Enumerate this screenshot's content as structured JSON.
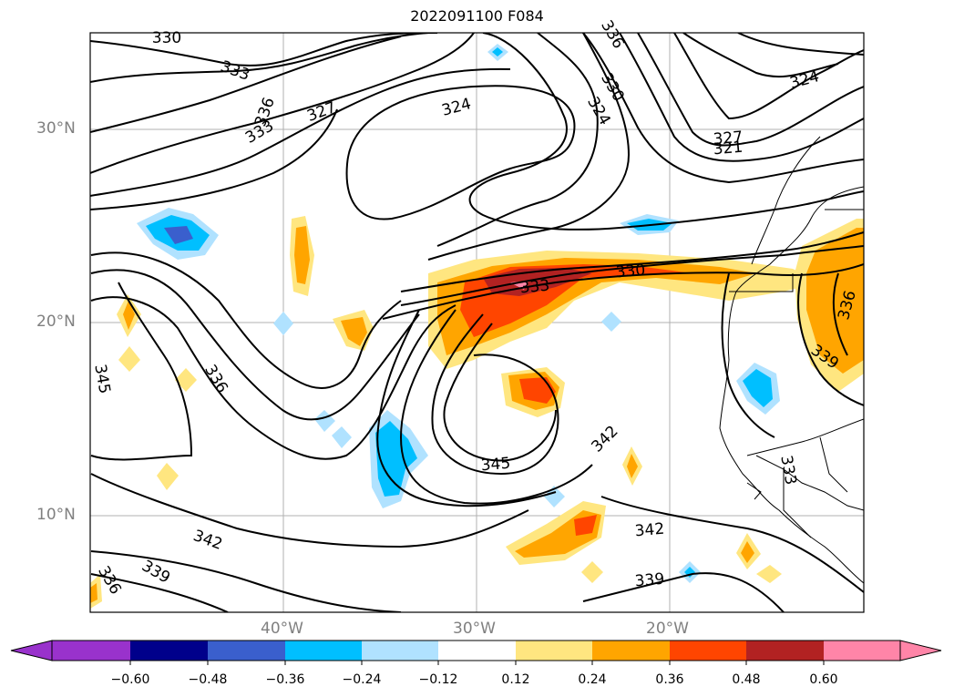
{
  "title": "2022091100 F084",
  "map": {
    "lat_labels": [
      "30°N",
      "20°N",
      "10°N"
    ],
    "lon_labels": [
      "40°W",
      "30°W",
      "20°W"
    ],
    "contour_labels": [
      "330",
      "333",
      "336",
      "333",
      "327",
      "324",
      "336",
      "330",
      "324",
      "327",
      "321",
      "324",
      "333",
      "330",
      "336",
      "339",
      "345",
      "336",
      "345",
      "342",
      "342",
      "342",
      "339",
      "339",
      "336",
      "333"
    ],
    "colors": {
      "land_line": "#000000",
      "grid": "#b0b0b0",
      "contour": "#000000"
    }
  },
  "colorbar": {
    "ticks": [
      "−0.60",
      "−0.48",
      "−0.36",
      "−0.24",
      "−0.12",
      "0.12",
      "0.24",
      "0.36",
      "0.48",
      "0.60"
    ],
    "colors": [
      "#9932cc",
      "#00008b",
      "#3a5fcd",
      "#00bfff",
      "#b0e2ff",
      "#ffffff",
      "#ffe680",
      "#ffa500",
      "#ff4500",
      "#b22222",
      "#ff85a8"
    ]
  }
}
